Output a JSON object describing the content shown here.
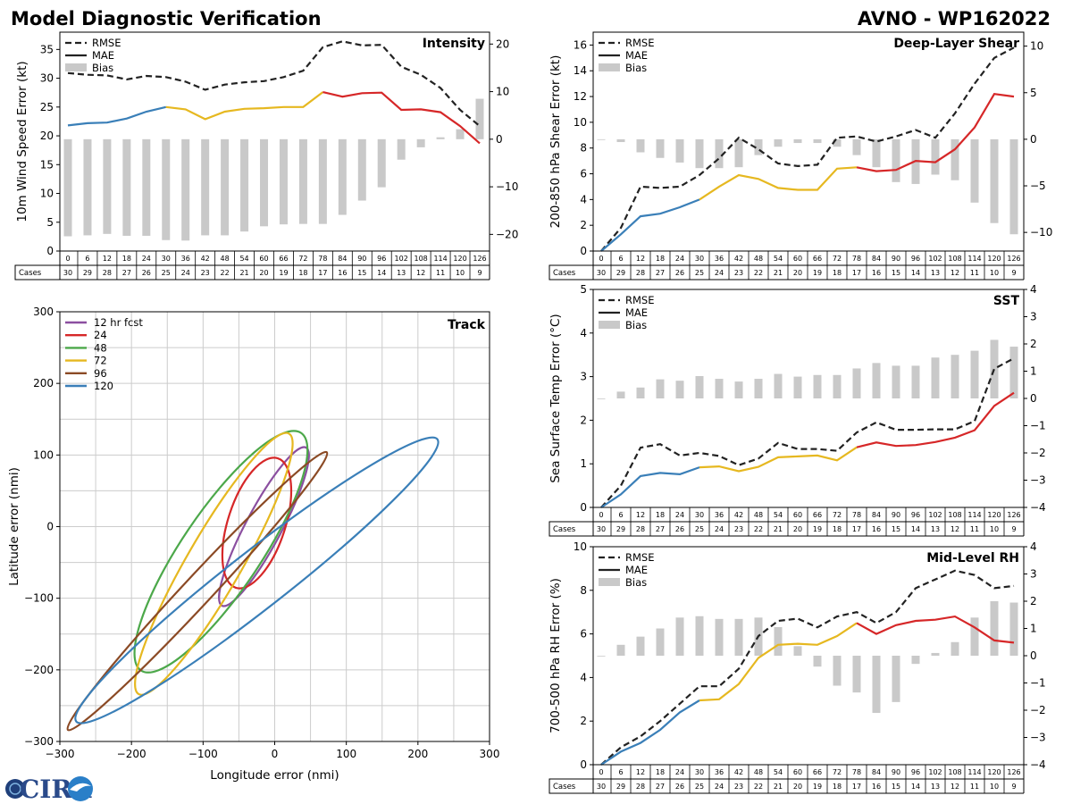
{
  "header": {
    "title": "Model Diagnostic Verification",
    "model_id": "AVNO - WP162022"
  },
  "logo": {
    "text": "CIRA"
  },
  "colors": {
    "rmse": "#222222",
    "mae_segments": [
      "#3a7fb8",
      "#e6b820",
      "#d62728"
    ],
    "bias": "#c9c9c9",
    "grid": "#cccccc",
    "track": [
      "#8b4fa0",
      "#d62728",
      "#4ca84a",
      "#e6b820",
      "#8b4a25",
      "#3a7fb8"
    ]
  },
  "legend_labels": {
    "rmse": "RMSE",
    "mae": "MAE",
    "bias": "Bias"
  },
  "table": {
    "row_label": "Cases",
    "hours": [
      "0",
      "6",
      "12",
      "18",
      "24",
      "30",
      "36",
      "42",
      "48",
      "54",
      "60",
      "66",
      "72",
      "78",
      "84",
      "90",
      "96",
      "102",
      "108",
      "114",
      "120",
      "126"
    ],
    "cases": [
      "30",
      "29",
      "28",
      "27",
      "26",
      "25",
      "24",
      "23",
      "22",
      "21",
      "20",
      "19",
      "18",
      "17",
      "16",
      "15",
      "14",
      "13",
      "12",
      "11",
      "10",
      "9"
    ]
  },
  "chart_data": [
    {
      "id": "intensity",
      "type": "line",
      "title": "Intensity",
      "ylabel": "10m Wind Speed Error (kt)",
      "ylim": [
        0,
        38
      ],
      "yticks": [
        0,
        5,
        10,
        15,
        20,
        25,
        30,
        35
      ],
      "y2lim": [
        -23.5,
        22.5
      ],
      "y2ticks": [
        -20,
        -10,
        0,
        10,
        20
      ],
      "mae_breaks": [
        5,
        13
      ],
      "rmse": [
        30.9,
        30.6,
        30.5,
        29.8,
        30.4,
        30.2,
        29.4,
        28.0,
        28.9,
        29.3,
        29.5,
        30.2,
        31.3,
        35.4,
        36.4,
        35.7,
        35.8,
        32.0,
        30.6,
        28.3,
        24.5,
        21.7
      ],
      "mae": [
        21.8,
        22.2,
        22.3,
        23.0,
        24.2,
        25.0,
        24.6,
        22.9,
        24.2,
        24.7,
        24.8,
        25.0,
        25.0,
        27.6,
        26.8,
        27.4,
        27.5,
        24.5,
        24.6,
        24.1,
        21.7,
        18.7
      ],
      "bias": [
        -20.4,
        -20.2,
        -19.9,
        -20.3,
        -20.3,
        -21.2,
        -21.3,
        -20.2,
        -20.2,
        -19.4,
        -18.3,
        -17.9,
        -17.8,
        -17.8,
        -15.9,
        -12.9,
        -10.1,
        -4.3,
        -1.7,
        0.4,
        2.1,
        8.5
      ]
    },
    {
      "id": "shear",
      "type": "line",
      "title": "Deep-Layer Shear",
      "ylabel": "200-850 hPa Shear Error (kt)",
      "ylim": [
        0,
        17
      ],
      "yticks": [
        0,
        2,
        4,
        6,
        8,
        10,
        12,
        14,
        16
      ],
      "y2lim": [
        -12,
        11.5
      ],
      "y2ticks": [
        -10,
        -5,
        0,
        5,
        10
      ],
      "mae_breaks": [
        5,
        13
      ],
      "rmse": [
        0.0,
        1.8,
        5.0,
        4.9,
        5.0,
        5.9,
        7.2,
        8.8,
        7.9,
        6.8,
        6.6,
        6.7,
        8.8,
        8.9,
        8.5,
        8.9,
        9.4,
        8.8,
        10.7,
        13.0,
        15.0,
        15.8
      ],
      "mae": [
        0.0,
        1.3,
        2.7,
        2.9,
        3.4,
        4.0,
        5.0,
        5.9,
        5.6,
        4.9,
        4.75,
        4.75,
        6.4,
        6.5,
        6.2,
        6.3,
        7.0,
        6.9,
        7.9,
        9.6,
        12.2,
        12.0
      ],
      "bias": [
        0.0,
        -0.3,
        -1.4,
        -2.0,
        -2.5,
        -3.1,
        -3.1,
        -3.0,
        -1.7,
        -0.8,
        -0.4,
        -0.4,
        -0.8,
        -1.7,
        -3.0,
        -4.6,
        -4.8,
        -3.8,
        -4.4,
        -6.8,
        -9.0,
        -10.2
      ]
    },
    {
      "id": "sst",
      "type": "line",
      "title": "SST",
      "ylabel": "Sea Surface Temp Error (°C)",
      "ylim": [
        0,
        5
      ],
      "yticks": [
        0,
        1,
        2,
        3,
        4,
        5
      ],
      "y2lim": [
        -4,
        4
      ],
      "y2ticks": [
        -4,
        -3,
        -2,
        -1,
        0,
        1,
        2,
        3,
        4
      ],
      "mae_breaks": [
        5,
        13
      ],
      "rmse": [
        0.0,
        0.5,
        1.37,
        1.45,
        1.19,
        1.25,
        1.18,
        0.97,
        1.12,
        1.48,
        1.34,
        1.34,
        1.3,
        1.72,
        1.95,
        1.78,
        1.78,
        1.79,
        1.79,
        1.98,
        3.18,
        3.42
      ],
      "mae": [
        0.0,
        0.3,
        0.72,
        0.79,
        0.76,
        0.92,
        0.94,
        0.83,
        0.93,
        1.15,
        1.17,
        1.19,
        1.08,
        1.38,
        1.49,
        1.41,
        1.43,
        1.5,
        1.6,
        1.77,
        2.33,
        2.63
      ],
      "bias": [
        0.0,
        0.25,
        0.4,
        0.7,
        0.65,
        0.82,
        0.72,
        0.62,
        0.72,
        0.9,
        0.8,
        0.86,
        0.86,
        1.1,
        1.3,
        1.2,
        1.2,
        1.5,
        1.6,
        1.75,
        2.15,
        1.9
      ]
    },
    {
      "id": "rh",
      "type": "line",
      "title": "Mid-Level RH",
      "ylabel": "700-500 hPa RH Error (%)",
      "ylim": [
        0,
        10
      ],
      "yticks": [
        0,
        2,
        4,
        6,
        8,
        10
      ],
      "y2lim": [
        -4,
        4
      ],
      "y2ticks": [
        -4,
        -3,
        -2,
        -1,
        0,
        1,
        2,
        3,
        4
      ],
      "mae_breaks": [
        5,
        13
      ],
      "rmse": [
        0.0,
        0.8,
        1.3,
        2.0,
        2.8,
        3.6,
        3.6,
        4.4,
        5.9,
        6.6,
        6.7,
        6.3,
        6.8,
        7.0,
        6.5,
        7.0,
        8.1,
        8.5,
        8.9,
        8.7,
        8.1,
        8.2
      ],
      "mae": [
        0.0,
        0.6,
        1.0,
        1.6,
        2.4,
        2.95,
        3.0,
        3.7,
        4.9,
        5.5,
        5.55,
        5.5,
        5.9,
        6.5,
        6.0,
        6.4,
        6.6,
        6.65,
        6.8,
        6.3,
        5.7,
        5.6
      ],
      "bias": [
        0.0,
        0.4,
        0.7,
        1.0,
        1.4,
        1.45,
        1.35,
        1.35,
        1.4,
        1.05,
        0.35,
        -0.4,
        -1.1,
        -1.35,
        -2.1,
        -1.7,
        -0.3,
        0.1,
        0.5,
        1.4,
        2.0,
        1.95
      ]
    },
    {
      "id": "track",
      "type": "scatter",
      "title": "Track",
      "xlabel": "Longitude error (nmi)",
      "ylabel": "Latitude error (nmi)",
      "xlim": [
        -300,
        300
      ],
      "ylim": [
        -300,
        300
      ],
      "xticks": [
        -300,
        -200,
        -100,
        0,
        100,
        200,
        300
      ],
      "yticks": [
        -300,
        -200,
        -100,
        0,
        100,
        200,
        300
      ],
      "ellipses": [
        {
          "label": "12 hr fcst",
          "cx": -15,
          "cy": 0,
          "semi_major": 125,
          "semi_minor": 25,
          "angle_deg": 62
        },
        {
          "label": "24",
          "cx": -25,
          "cy": 5,
          "semi_major": 95,
          "semi_minor": 40,
          "angle_deg": 72
        },
        {
          "label": "48",
          "cx": -75,
          "cy": -35,
          "semi_major": 200,
          "semi_minor": 55,
          "angle_deg": 56
        },
        {
          "label": "72",
          "cx": -85,
          "cy": -52,
          "semi_major": 210,
          "semi_minor": 38,
          "angle_deg": 60
        },
        {
          "label": "96",
          "cx": -108,
          "cy": -90,
          "semi_major": 265,
          "semi_minor": 20,
          "angle_deg": 47
        },
        {
          "label": "120",
          "cx": -25,
          "cy": -75,
          "semi_major": 320,
          "semi_minor": 40,
          "angle_deg": 38
        }
      ]
    }
  ]
}
